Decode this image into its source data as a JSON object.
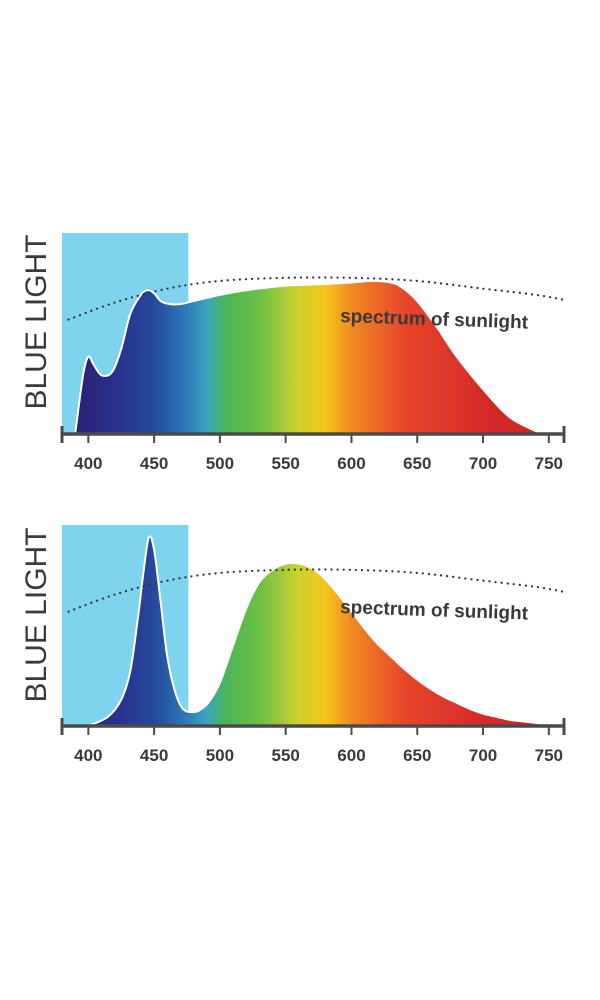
{
  "spectrum_colors": [
    {
      "nm": 380,
      "color": "#2b1b6b"
    },
    {
      "nm": 420,
      "color": "#2a2f8c"
    },
    {
      "nm": 450,
      "color": "#24499c"
    },
    {
      "nm": 475,
      "color": "#2f7ab8"
    },
    {
      "nm": 490,
      "color": "#3aa6bf"
    },
    {
      "nm": 505,
      "color": "#4cb556"
    },
    {
      "nm": 530,
      "color": "#6cbf45"
    },
    {
      "nm": 560,
      "color": "#cdd12f"
    },
    {
      "nm": 580,
      "color": "#f6c51b"
    },
    {
      "nm": 600,
      "color": "#f08a22"
    },
    {
      "nm": 640,
      "color": "#e8462a"
    },
    {
      "nm": 700,
      "color": "#d62a27"
    },
    {
      "nm": 760,
      "color": "#c8232a"
    }
  ],
  "chart_data": [
    {
      "type": "area",
      "ylabel": "BLUE LIGHT",
      "annotation": "spectrum of sunlight",
      "xlim": [
        380,
        760
      ],
      "ylim": [
        0,
        1.3
      ],
      "xticks": [
        400,
        450,
        500,
        550,
        600,
        650,
        700,
        750
      ],
      "blue_band": {
        "from": 380,
        "to": 476,
        "top": 1.3,
        "color": "#7fd3ef"
      },
      "series": [
        {
          "kind": "spectrum",
          "x": [
            390,
            396,
            400,
            404,
            410,
            418,
            425,
            432,
            440,
            445,
            450,
            455,
            462,
            470,
            480,
            500,
            520,
            550,
            580,
            600,
            615,
            630,
            638,
            650,
            665,
            680,
            700,
            720,
            740,
            748
          ],
          "values": [
            0.0,
            0.38,
            0.5,
            0.45,
            0.38,
            0.4,
            0.55,
            0.78,
            0.9,
            0.93,
            0.91,
            0.86,
            0.84,
            0.84,
            0.86,
            0.9,
            0.93,
            0.96,
            0.97,
            0.98,
            0.99,
            0.98,
            0.95,
            0.86,
            0.69,
            0.5,
            0.29,
            0.11,
            0.02,
            0.0
          ]
        },
        {
          "kind": "sunlight-dotted",
          "x": [
            385,
            420,
            460,
            500,
            550,
            600,
            650,
            700,
            740,
            760
          ],
          "values": [
            0.74,
            0.85,
            0.94,
            0.99,
            1.01,
            1.01,
            0.99,
            0.94,
            0.9,
            0.87
          ]
        }
      ]
    },
    {
      "type": "area",
      "ylabel": "BLUE LIGHT",
      "annotation": "spectrum of sunlight",
      "xlim": [
        380,
        760
      ],
      "ylim": [
        0,
        1.3
      ],
      "xticks": [
        400,
        450,
        500,
        550,
        600,
        650,
        700,
        750
      ],
      "blue_band": {
        "from": 380,
        "to": 476,
        "top": 1.3,
        "color": "#7fd3ef"
      },
      "series": [
        {
          "kind": "spectrum",
          "x": [
            400,
            415,
            425,
            432,
            438,
            442,
            446,
            450,
            455,
            460,
            466,
            472,
            480,
            486,
            492,
            500,
            510,
            520,
            530,
            540,
            550,
            560,
            570,
            580,
            590,
            600,
            610,
            620,
            630,
            640,
            650,
            660,
            670,
            680,
            690,
            700,
            710,
            720,
            730,
            740,
            750,
            760
          ],
          "values": [
            0.0,
            0.06,
            0.17,
            0.36,
            0.72,
            1.0,
            1.22,
            1.14,
            0.8,
            0.45,
            0.22,
            0.11,
            0.09,
            0.11,
            0.16,
            0.28,
            0.52,
            0.76,
            0.93,
            1.01,
            1.05,
            1.05,
            1.02,
            0.95,
            0.85,
            0.74,
            0.63,
            0.53,
            0.45,
            0.37,
            0.3,
            0.24,
            0.19,
            0.15,
            0.11,
            0.08,
            0.06,
            0.04,
            0.03,
            0.02,
            0.01,
            0.0
          ]
        },
        {
          "kind": "sunlight-dotted",
          "x": [
            385,
            420,
            460,
            500,
            550,
            600,
            650,
            700,
            740,
            760
          ],
          "values": [
            0.74,
            0.85,
            0.94,
            0.99,
            1.01,
            1.01,
            0.99,
            0.94,
            0.9,
            0.87
          ]
        }
      ]
    }
  ]
}
